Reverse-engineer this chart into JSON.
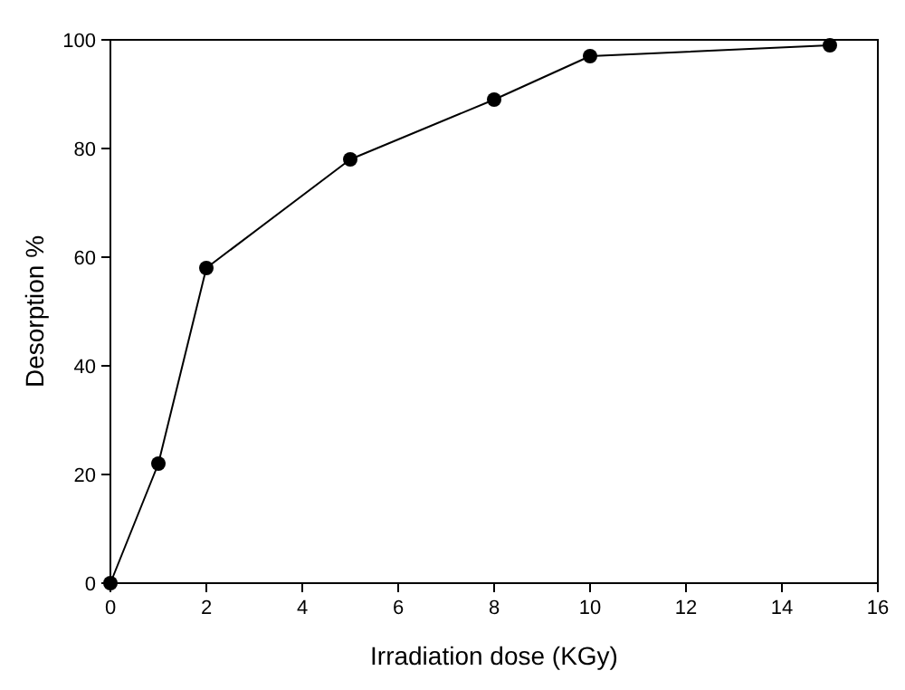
{
  "chart_data": {
    "type": "line",
    "xlabel": "Irradiation dose (KGy)",
    "ylabel": "Desorption %",
    "x": [
      0,
      1,
      2,
      5,
      8,
      10,
      15
    ],
    "series": [
      {
        "color": "#000000",
        "values": [
          0,
          22,
          58,
          78,
          89,
          97,
          99
        ]
      }
    ],
    "xlim": [
      0,
      16
    ],
    "xticks": [
      0,
      2,
      4,
      6,
      8,
      10,
      12,
      14,
      16
    ],
    "ylim": [
      0,
      100
    ],
    "yticks": [
      0,
      20,
      40,
      60,
      80,
      100
    ],
    "marker": "circle",
    "line_style": "solid"
  }
}
